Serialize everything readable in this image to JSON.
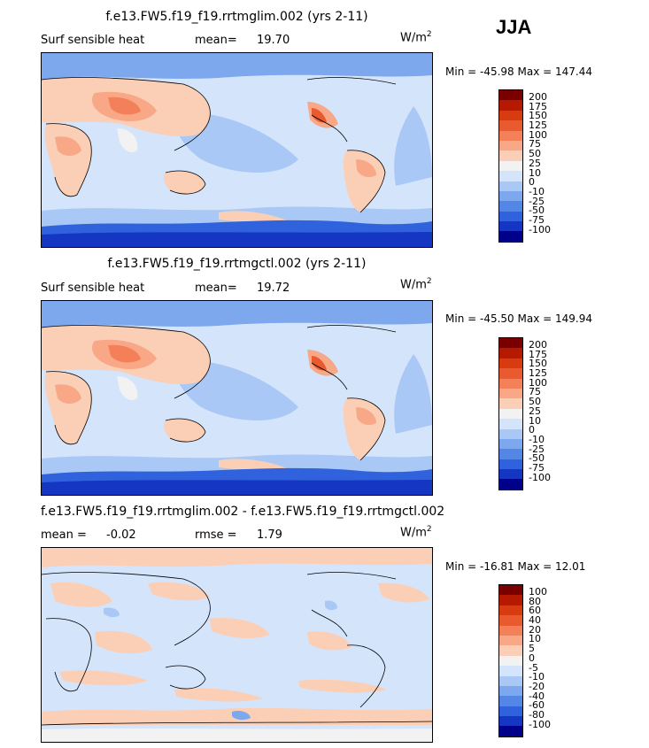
{
  "season": "JJA",
  "colors": {
    "abs_scale": [
      "#7a0000",
      "#b51a00",
      "#d93b11",
      "#ea5a30",
      "#f4805a",
      "#f8a886",
      "#fbcfb6",
      "#f2f2f2",
      "#d4e4fb",
      "#a9c8f5",
      "#7ea8ee",
      "#5487e5",
      "#2f62dc",
      "#1436c2",
      "#00008a"
    ],
    "diff_scale": [
      "#7a0000",
      "#b51a00",
      "#d93b11",
      "#ea5a30",
      "#f4805a",
      "#f8a886",
      "#fbcfb6",
      "#f2f2f2",
      "#d4e4fb",
      "#a9c8f5",
      "#7ea8ee",
      "#5487e5",
      "#2f62dc",
      "#1436c2",
      "#00008a"
    ]
  },
  "panels": [
    {
      "title": "f.e13.FW5.f19_f19.rrtmglim.002 (yrs 2-11)",
      "left_label": "Surf sensible heat",
      "stat_label": "mean=",
      "stat_value": "19.70",
      "unit_base": "W/m",
      "unit_exp": "2",
      "min_label": "Min =",
      "min_value": "-45.98",
      "max_label": "Max =",
      "max_value": "147.44",
      "levels": [
        "200",
        "175",
        "150",
        "125",
        "100",
        "75",
        "50",
        "25",
        "10",
        "0",
        "-10",
        "-25",
        "-50",
        "-75",
        "-100"
      ]
    },
    {
      "title": "f.e13.FW5.f19_f19.rrtmgctl.002 (yrs 2-11)",
      "left_label": "Surf sensible heat",
      "stat_label": "mean=",
      "stat_value": "19.72",
      "unit_base": "W/m",
      "unit_exp": "2",
      "min_label": "Min =",
      "min_value": "-45.50",
      "max_label": "Max =",
      "max_value": "149.94",
      "levels": [
        "200",
        "175",
        "150",
        "125",
        "100",
        "75",
        "50",
        "25",
        "10",
        "0",
        "-10",
        "-25",
        "-50",
        "-75",
        "-100"
      ]
    },
    {
      "title": "f.e13.FW5.f19_f19.rrtmglim.002 - f.e13.FW5.f19_f19.rrtmgctl.002",
      "left_label": "mean =",
      "left_value": "-0.02",
      "stat_label": "rmse =",
      "stat_value": "1.79",
      "unit_base": "W/m",
      "unit_exp": "2",
      "min_label": "Min =",
      "min_value": "-16.81",
      "max_label": "Max =",
      "max_value": "12.01",
      "levels": [
        "100",
        "80",
        "60",
        "40",
        "20",
        "10",
        "5",
        "0",
        "-5",
        "-10",
        "-20",
        "-40",
        "-60",
        "-80",
        "-100"
      ]
    }
  ]
}
